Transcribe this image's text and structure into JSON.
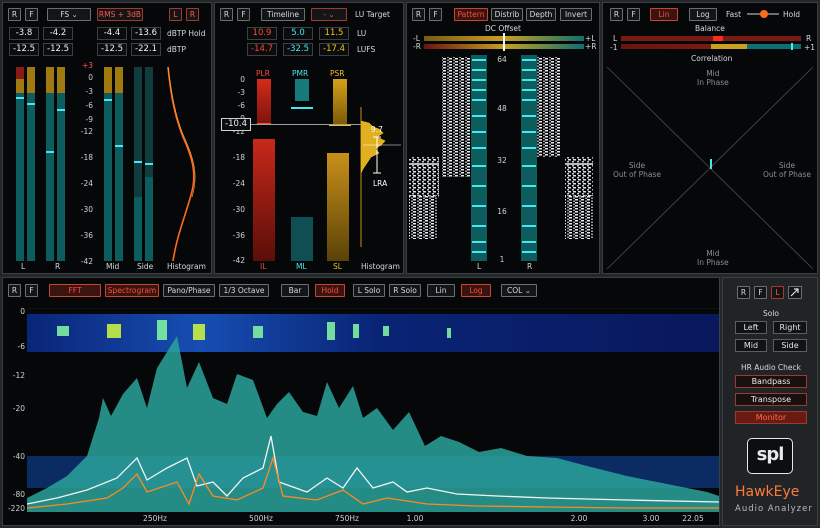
{
  "level": {
    "buttons": {
      "r": "R",
      "f": "F",
      "fs": "FS ⌄",
      "rms": "RMS + 3dB",
      "l": "L",
      "r2": "R"
    },
    "readouts": {
      "a1": "-3.8",
      "a2": "-4.2",
      "b1": "-12.5",
      "b2": "-12.5",
      "c1": "-4.4",
      "c2": "-13.6",
      "d1": "-12.5",
      "d2": "-22.1"
    },
    "labels": {
      "dbtp_hold": "dBTP Hold",
      "dbtp": "dBTP",
      "l": "L",
      "r": "R",
      "mid": "Mid",
      "side": "Side",
      "histogram": "Histogram"
    },
    "scale": [
      "+3",
      "0",
      "-3",
      "-6",
      "-9",
      "-12",
      "-18",
      "-24",
      "-30",
      "-36",
      "-42"
    ]
  },
  "loudness": {
    "buttons": {
      "r": "R",
      "f": "F",
      "timeline": "Timeline",
      "target": "- ⌄"
    },
    "target_label": "LU Target",
    "lu": {
      "a": "10.9",
      "b": "5.0",
      "c": "11.5",
      "label": "LU"
    },
    "lufs": {
      "a": "-14.7",
      "b": "-32.5",
      "c": "-17.4",
      "label": "LUFS"
    },
    "headers": {
      "plr": "PLR",
      "pmr": "PMR",
      "psr": "PSR"
    },
    "footers": {
      "il": "IL",
      "ml": "ML",
      "sl": "SL",
      "histogram": "Histogram"
    },
    "scale": [
      "0",
      "-3",
      "-6",
      "-9",
      "-12",
      "-18",
      "-24",
      "-30",
      "-36",
      "-42"
    ],
    "marker": "-10.4",
    "lra_value": "9.7",
    "lra_label": "LRA"
  },
  "dc": {
    "buttons": {
      "r": "R",
      "f": "F",
      "pattern": "Pattern",
      "distrib": "Distrib",
      "depth": "Depth",
      "invert": "Invert"
    },
    "title": "DC Offset",
    "minus_l": "-L",
    "plus_l": "+L",
    "minus_r": "-R",
    "plus_r": "+R",
    "scale": [
      "64",
      "48",
      "32",
      "16",
      "1"
    ],
    "bottom_l": "L",
    "bottom_r": "R"
  },
  "phase": {
    "buttons": {
      "r": "R",
      "f": "F",
      "lin": "Lin",
      "log": "Log"
    },
    "fast": "Fast",
    "hold": "Hold",
    "balance": "Balance",
    "correlation": "Correlation",
    "l": "L",
    "r": "R",
    "minus1": "-1",
    "plus1": "+1",
    "mid_top": "Mid\nIn Phase",
    "mid_bottom": "Mid\nIn Phase",
    "side_left": "Side\nOut of Phase",
    "side_right": "Side\nOut of Phase"
  },
  "spectrum": {
    "buttons": {
      "r": "R",
      "f": "F",
      "fft": "FFT",
      "spectrogram": "Spectrogram",
      "pano": "Pano/Phase",
      "octave": "1/3 Octave",
      "bar": "Bar",
      "hold": "Hold",
      "lsolo": "L Solo",
      "rsolo": "R Solo",
      "lin": "Lin",
      "log": "Log",
      "col": "COL ⌄"
    },
    "y_scale": [
      "0",
      "-6",
      "-12",
      "-20",
      "-40",
      "-80",
      "-220"
    ],
    "x_scale": [
      "250Hz",
      "500Hz",
      "750Hz",
      "1.00",
      "2.00",
      "3.00",
      "22.05"
    ],
    "fill_color": "#2aa39b",
    "line_white": "#f2f4f6",
    "line_orange": "#ff8a1e"
  },
  "side": {
    "buttons": {
      "r": "R",
      "f": "F",
      "l": "L"
    },
    "solo_title": "Solo",
    "solo": {
      "left": "Left",
      "right": "Right",
      "mid": "Mid",
      "side": "Side"
    },
    "hr_title": "HR Audio Check",
    "hr": {
      "bandpass": "Bandpass",
      "transpose": "Transpose",
      "monitor": "Monitor"
    },
    "logo": "spl",
    "product": "HawkEye",
    "tagline": "Audio Analyzer"
  }
}
